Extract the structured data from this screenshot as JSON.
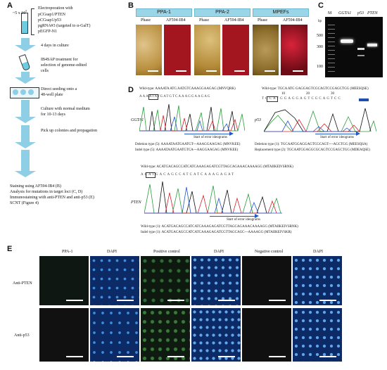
{
  "panels": {
    "A": "A",
    "B": "B",
    "C": "C",
    "D": "D",
    "E": "E"
  },
  "panelA": {
    "cells": "~5 x 10",
    "cells_exp": "5",
    "plasmids": [
      "pCGsap1/PTEN",
      "pCGsap1/p53",
      "pgRNA#3 (targeted to α-GalT)",
      "pEGFP-N1"
    ],
    "electroporation": "Electroporation with",
    "step1": "4 days in culture",
    "step2": [
      "IB4SAP treatment for",
      "selection of genome-edited",
      "cells"
    ],
    "step3": [
      "Direct seeding onto a",
      "48-well plate"
    ],
    "step4": [
      "Culture with normal medium",
      "for 10-13 days"
    ],
    "step5": "Pick up colonies and propagation",
    "final": [
      "Staining using AF594-IB4 (B)",
      "Analysis for mutations in target loci (C, D)",
      "Immunostaining with anti-PTEN and anti-p53 (E)",
      "SCNT (Figure 4)"
    ]
  },
  "panelB": {
    "groups": [
      "PPA-1",
      "PPA-2",
      "MPEFs"
    ],
    "sub": [
      "Phase",
      "AF594-IB4"
    ],
    "colors": {
      "phase": "#c9a24a",
      "red": "#b3182a",
      "red_dim": "#8a1020"
    }
  },
  "panelC": {
    "lanes": [
      "M",
      "GGTA1",
      "p53",
      "PTEN"
    ],
    "bp_label": "bp",
    "markers": [
      "500",
      "300",
      "100"
    ]
  },
  "panelD": {
    "ggta1": {
      "label": "GGTA1",
      "wt": "Wild-type: AAAATA ATG AATGTCAAAGGAAGAG (MNVQRK)",
      "del": "Deletion type (5): AAAATAATGAATGT---AAAGGAAGAG (MNVKEE)",
      "indel": "Indel type (5): AAAATAATGAATGTCA---AAGGAAGAG (MNVKEE)",
      "seq": "AAAATATGATGTCAAAGGAAGAG"
    },
    "p53": {
      "label": "p53",
      "wt": "Wild-type: TGCA ATG GAGGAGTCGCAGTCCGAGCTGG (MEESQSE)",
      "del": "Deletion type (1): TGCAATGGAGGAGTCGCAGT----AGCTGG (MEESQSA)",
      "rep": "Replacement type (2): TGCAATGGAGGCGCAGTCCGAGCTGG (MDEAQSE)",
      "seq": "TGCATGGAGGAGTCGCAGTCC",
      "ticks": [
        "10",
        "20",
        "30"
      ]
    },
    "pten": {
      "label": "PTEN",
      "wt": "Wild-type: ACATGACAGCCATCATCAAAGAGATCGTTAGCAGAAACAAAAGG (MTAIIKEIVSRNK)",
      "wt1": "Wild-type (1): ACATGACAGCCATCATCAAAGAGATCGTTAGCAGAAACAAAAGG (MTAIIKEIVSRNK)",
      "indel": "Indel type (1): ACATGACAGCCATCATCAAAGAGATCGTTAGCAGC---AAAAGG (MTAIIKEIVSKR)",
      "seq": "ACATGACAGCCATCATCAAAGAGAT"
    },
    "arrow_text": "Start of error ideograms"
  },
  "panelE": {
    "cols": [
      "PPA-1",
      "DAPI",
      "Positive control",
      "DAPI",
      "Negative control",
      "DAPI"
    ],
    "rows": [
      "Anti-PTEN",
      "Anti-p53"
    ]
  }
}
